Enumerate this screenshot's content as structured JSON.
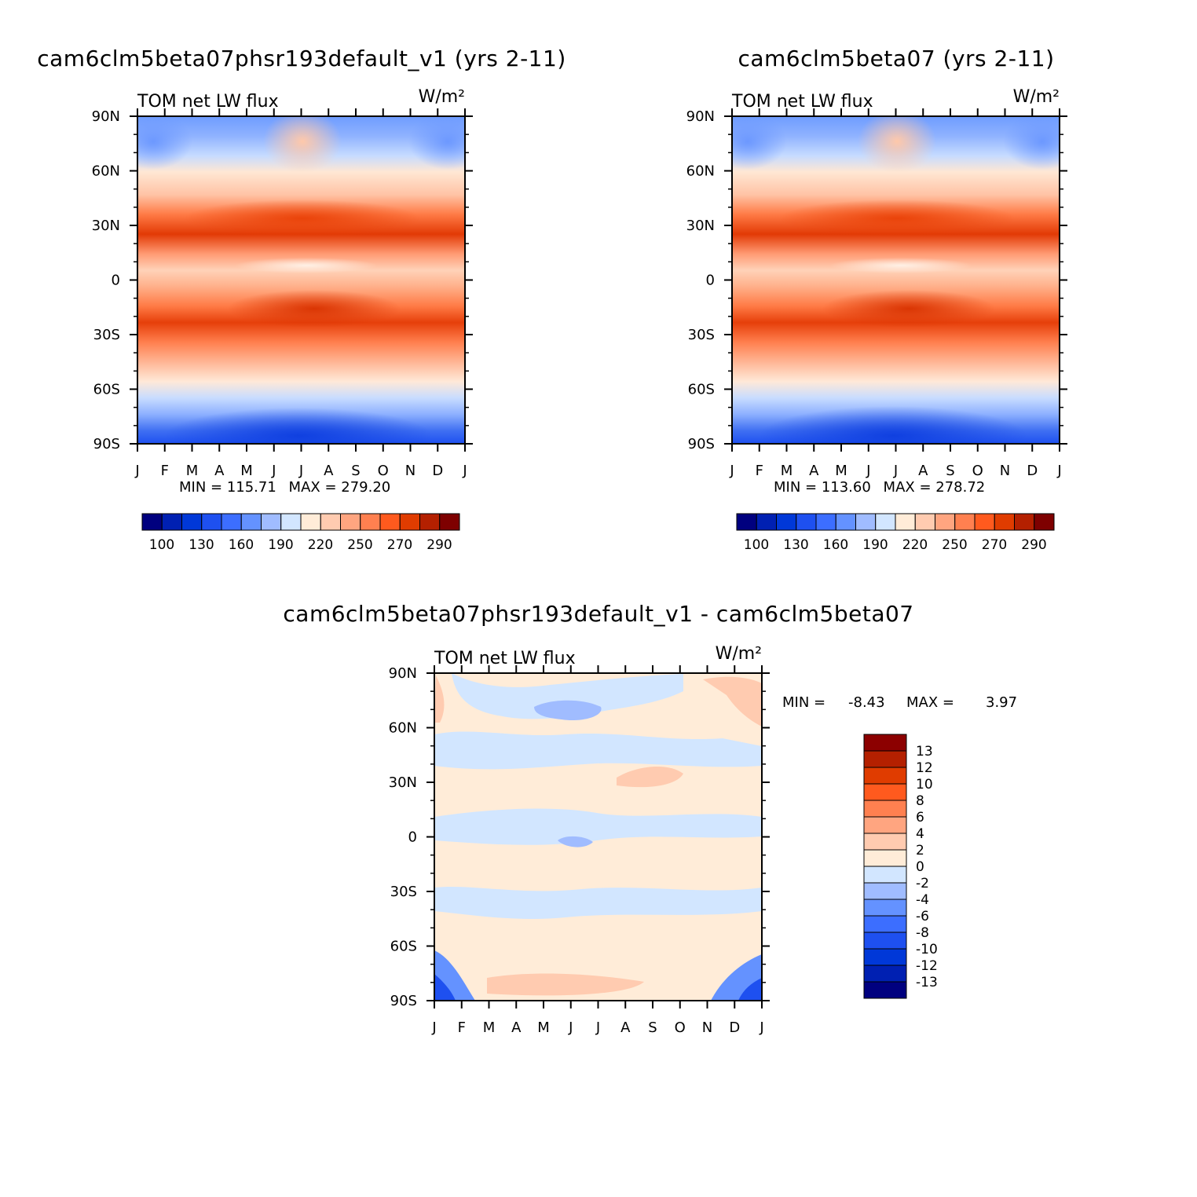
{
  "figure": {
    "main_title_1": "cam6clm5beta07phsr193default_v1 (yrs 2-11)",
    "main_title_2": "cam6clm5beta07 (yrs 2-11)",
    "main_title_3": "cam6clm5beta07phsr193default_v1 - cam6clm5beta07"
  },
  "chart_data": [
    {
      "type": "heatmap",
      "title": "cam6clm5beta07phsr193default_v1 (yrs 2-11)",
      "variable": "TOM net LW flux",
      "units": "W/m²",
      "x_ticks": [
        "J",
        "F",
        "M",
        "A",
        "M",
        "J",
        "J",
        "A",
        "S",
        "O",
        "N",
        "D",
        "J"
      ],
      "y_ticks": [
        "90N",
        "60N",
        "30N",
        "0",
        "30S",
        "60S",
        "90S"
      ],
      "min_label": "MIN = 115.71",
      "max_label": "MAX = 279.20",
      "min": 115.71,
      "max": 279.2,
      "colorbar_levels": [
        100,
        110,
        120,
        130,
        140,
        150,
        160,
        170,
        180,
        190,
        200,
        210,
        220,
        230,
        240,
        250,
        260,
        270,
        280,
        290
      ],
      "colorbar_labels": [
        "100",
        "130",
        "160",
        "190",
        "220",
        "250",
        "270",
        "290"
      ],
      "colorbar_colors": [
        "#00007f",
        "#0020b2",
        "#0038d8",
        "#1e50f0",
        "#3c6eff",
        "#6492ff",
        "#a0bcff",
        "#d2e6ff",
        "#ffecd8",
        "#ffcbb0",
        "#ffa580",
        "#ff8050",
        "#ff5a1e",
        "#e03c00",
        "#b42000",
        "#7e0000"
      ]
    },
    {
      "type": "heatmap",
      "title": "cam6clm5beta07 (yrs 2-11)",
      "variable": "TOM net LW flux",
      "units": "W/m²",
      "x_ticks": [
        "J",
        "F",
        "M",
        "A",
        "M",
        "J",
        "J",
        "A",
        "S",
        "O",
        "N",
        "D",
        "J"
      ],
      "y_ticks": [
        "90N",
        "60N",
        "30N",
        "0",
        "30S",
        "60S",
        "90S"
      ],
      "min_label": "MIN = 113.60",
      "max_label": "MAX = 278.72",
      "min": 113.6,
      "max": 278.72,
      "colorbar_levels": [
        100,
        110,
        120,
        130,
        140,
        150,
        160,
        170,
        180,
        190,
        200,
        210,
        220,
        230,
        240,
        250,
        260,
        270,
        280,
        290
      ],
      "colorbar_labels": [
        "100",
        "130",
        "160",
        "190",
        "220",
        "250",
        "270",
        "290"
      ],
      "colorbar_colors": [
        "#00007f",
        "#0020b2",
        "#0038d8",
        "#1e50f0",
        "#3c6eff",
        "#6492ff",
        "#a0bcff",
        "#d2e6ff",
        "#ffecd8",
        "#ffcbb0",
        "#ffa580",
        "#ff8050",
        "#ff5a1e",
        "#e03c00",
        "#b42000",
        "#7e0000"
      ]
    },
    {
      "type": "heatmap",
      "title": "cam6clm5beta07phsr193default_v1 - cam6clm5beta07",
      "variable": "TOM net LW flux",
      "units": "W/m²",
      "x_ticks": [
        "J",
        "F",
        "M",
        "A",
        "M",
        "J",
        "J",
        "A",
        "S",
        "O",
        "N",
        "D",
        "J"
      ],
      "y_ticks": [
        "90N",
        "60N",
        "30N",
        "0",
        "30S",
        "60S",
        "90S"
      ],
      "min_label": "MIN =",
      "min_value": "-8.43",
      "max_label": "MAX =",
      "max_value": "3.97",
      "min": -8.43,
      "max": 3.97,
      "colorbar_labels": [
        "13",
        "12",
        "10",
        "8",
        "6",
        "4",
        "2",
        "0",
        "-2",
        "-4",
        "-6",
        "-8",
        "-10",
        "-12",
        "-13"
      ],
      "colorbar_colors": [
        "#8c0000",
        "#b42000",
        "#e03c00",
        "#ff5a1e",
        "#ff8050",
        "#ffa580",
        "#ffcbb0",
        "#ffecd8",
        "#d2e6ff",
        "#a0bcff",
        "#6492ff",
        "#3c6eff",
        "#1e50f0",
        "#0038d8",
        "#0020b2",
        "#00007f"
      ]
    }
  ]
}
